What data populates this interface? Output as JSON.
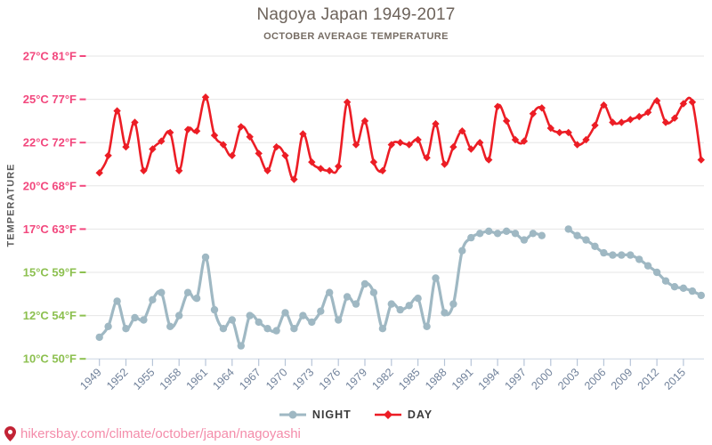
{
  "header": {
    "title": "Nagoya Japan 1949-2017",
    "subtitle": "OCTOBER AVERAGE TEMPERATURE"
  },
  "legend": {
    "night_label": "NIGHT",
    "day_label": "DAY"
  },
  "footer": {
    "url": "hikersbay.com/climate/october/japan/nagoyashi",
    "pin_icon": "location-pin"
  },
  "style": {
    "day_color": "#ec1d25",
    "night_color": "#9fb8c3",
    "warm_label_color": "#f2477d",
    "cool_label_color": "#8dc050",
    "year_label_color": "#71829b",
    "grid_color": "#e6e6e6",
    "axis_line_color": "#ccd6e3",
    "tick_color": "#b7c5d8",
    "legend_text_color": "#3b3b3b",
    "footer_url_color": "#f48caa",
    "pin_color": "#c22335",
    "background": "#ffffff"
  },
  "chart_data": {
    "type": "line",
    "title": "Nagoya Japan 1949-2017",
    "subtitle": "OCTOBER AVERAGE TEMPERATURE",
    "ylabel": "TEMPERATURE",
    "xlabel": "",
    "grid": true,
    "legend_position": "bottom",
    "x": {
      "start_year": 1949,
      "end_year": 2017,
      "step": 1
    },
    "x_tick_years": [
      1949,
      1952,
      1955,
      1958,
      1961,
      1964,
      1967,
      1970,
      1973,
      1976,
      1979,
      1982,
      1985,
      1988,
      1991,
      1994,
      1997,
      2000,
      2003,
      2006,
      2009,
      2012,
      2015
    ],
    "y_ticks": [
      {
        "c": 27,
        "f": 81,
        "group": "warm"
      },
      {
        "c": 25,
        "f": 77,
        "group": "warm"
      },
      {
        "c": 22,
        "f": 72,
        "group": "warm"
      },
      {
        "c": 20,
        "f": 68,
        "group": "warm"
      },
      {
        "c": 17,
        "f": 63,
        "group": "warm"
      },
      {
        "c": 15,
        "f": 59,
        "group": "cool"
      },
      {
        "c": 12,
        "f": 54,
        "group": "cool"
      },
      {
        "c": 10,
        "f": 50,
        "group": "cool"
      }
    ],
    "y_tick_spacing": "uniform-pixel (equal row height between ticks, piecewise-linear in temperature)",
    "unit": "degrees C",
    "series": [
      {
        "name": "NIGHT",
        "marker": "circle",
        "color": "#9fb8c3",
        "values": [
          11.0,
          11.5,
          13.0,
          11.4,
          11.9,
          11.8,
          13.1,
          13.6,
          11.5,
          12.0,
          13.6,
          13.2,
          15.7,
          12.4,
          11.4,
          11.8,
          10.6,
          12.0,
          11.7,
          11.4,
          11.3,
          12.2,
          11.4,
          12.0,
          11.7,
          12.3,
          13.6,
          11.8,
          13.3,
          12.8,
          14.2,
          13.6,
          11.4,
          12.8,
          12.4,
          12.7,
          13.2,
          11.5,
          14.6,
          12.2,
          12.8,
          16.0,
          16.6,
          16.8,
          16.9,
          16.8,
          16.9,
          16.8,
          16.5,
          16.8,
          16.7,
          null,
          null,
          17.0,
          16.7,
          16.5,
          16.2,
          15.9,
          15.8,
          15.8,
          15.8,
          15.6,
          15.3,
          15.0,
          14.4,
          14.0,
          13.9,
          13.7,
          13.4
        ]
      },
      {
        "name": "DAY",
        "marker": "diamond",
        "color": "#ec1d25",
        "values": [
          20.6,
          21.4,
          24.2,
          21.8,
          23.4,
          20.7,
          21.7,
          22.1,
          22.7,
          20.7,
          22.9,
          22.8,
          25.1,
          22.5,
          21.9,
          21.4,
          23.1,
          22.4,
          21.5,
          20.7,
          21.8,
          21.4,
          20.3,
          22.6,
          21.1,
          20.8,
          20.7,
          20.9,
          24.8,
          21.9,
          23.5,
          21.1,
          20.7,
          21.9,
          22.0,
          21.9,
          22.2,
          21.3,
          23.3,
          21.0,
          21.8,
          22.8,
          21.7,
          22.0,
          21.2,
          24.5,
          23.5,
          22.2,
          22.1,
          24.0,
          24.4,
          23.0,
          22.7,
          22.7,
          21.9,
          22.2,
          23.2,
          24.6,
          23.4,
          23.4,
          23.6,
          23.8,
          24.1,
          24.9,
          23.4,
          23.7,
          24.7,
          24.8,
          21.2
        ]
      }
    ]
  }
}
